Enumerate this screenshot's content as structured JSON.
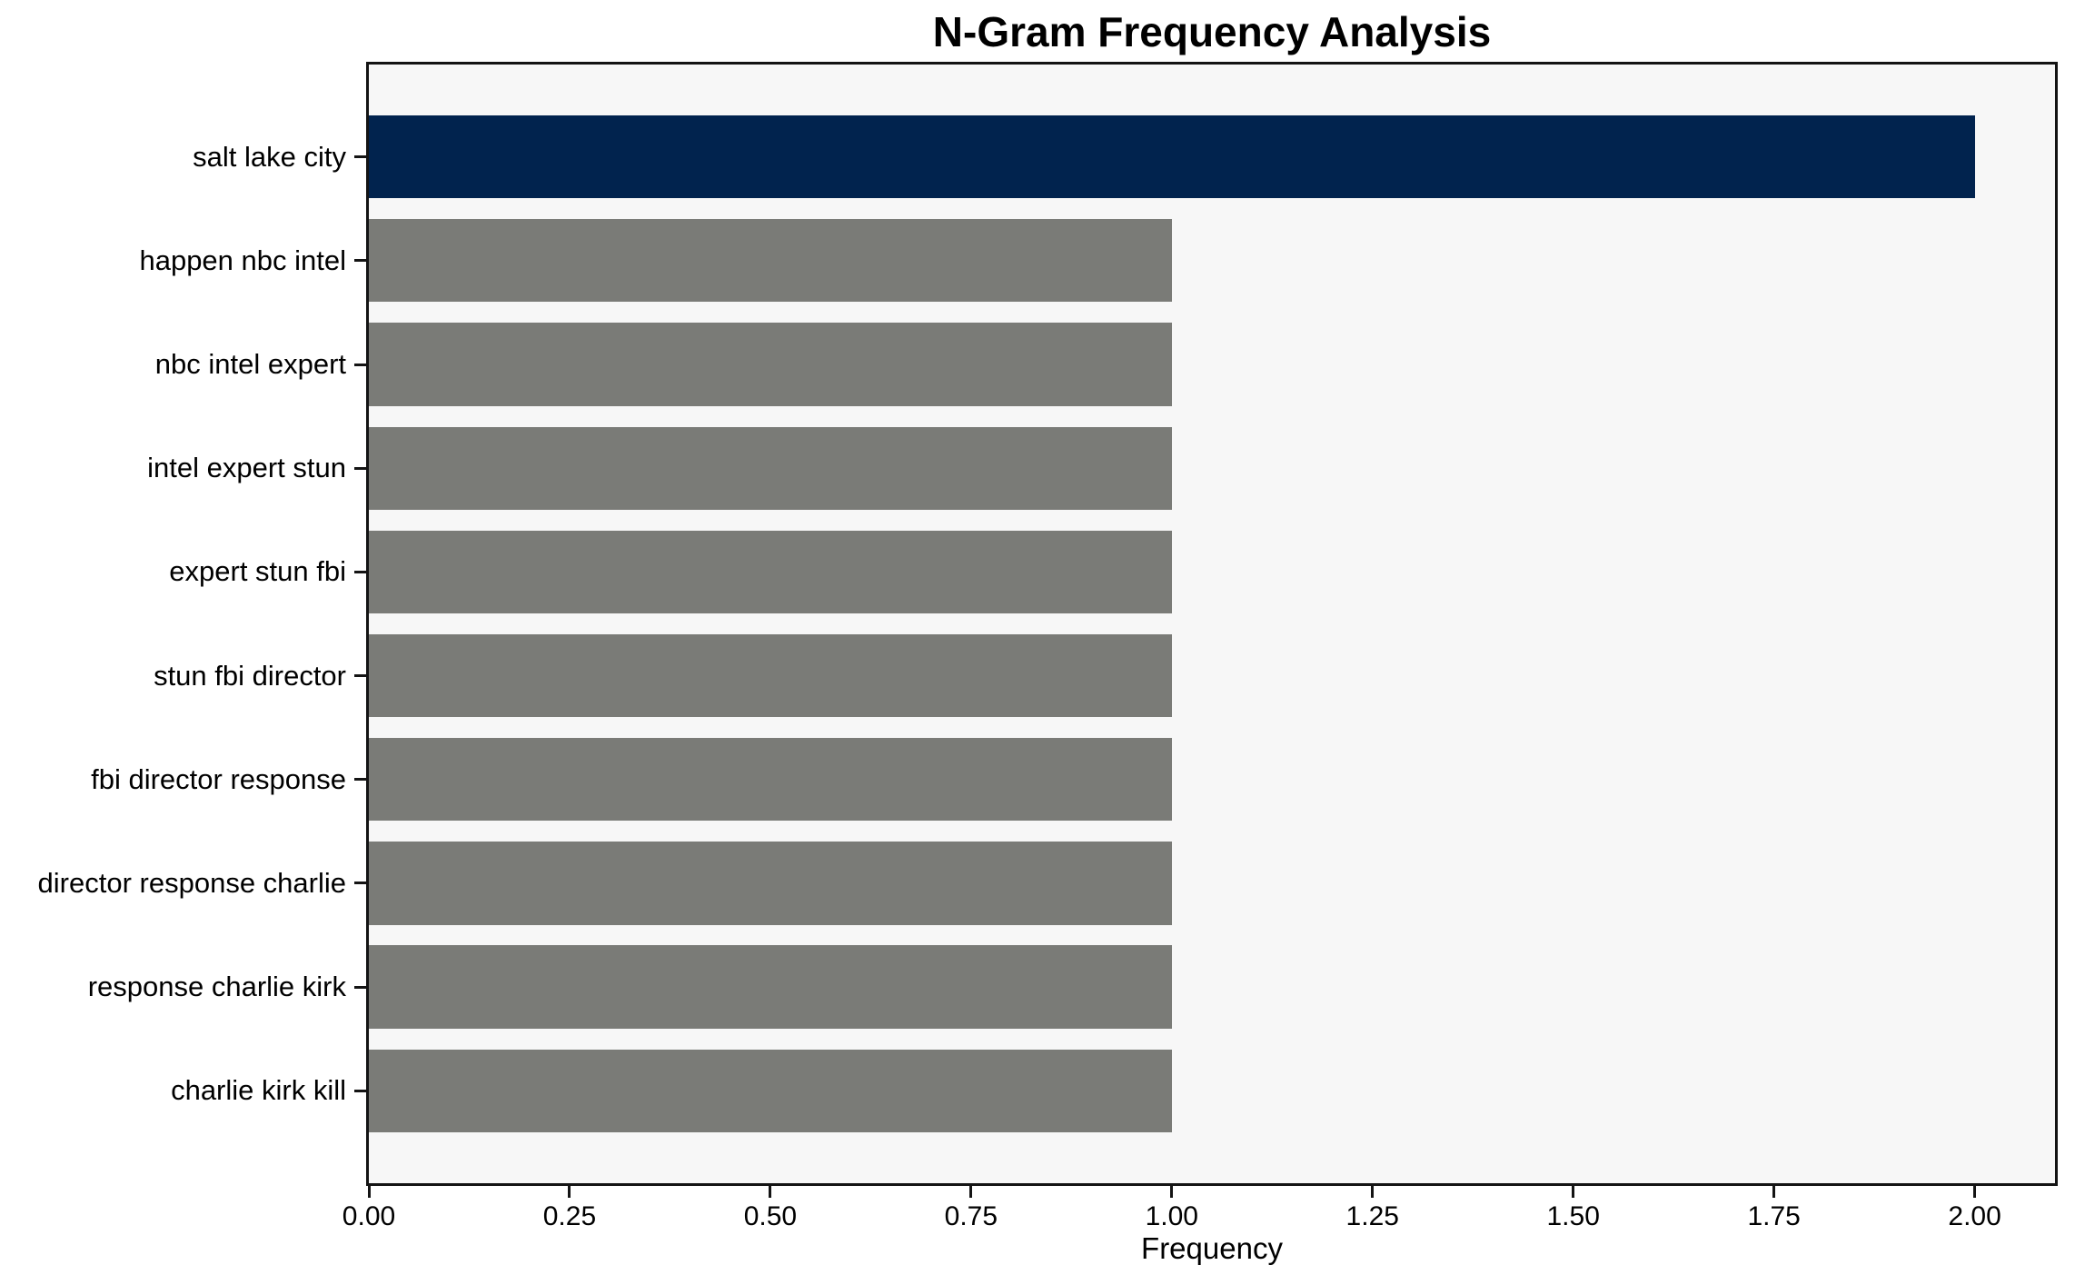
{
  "chart_data": {
    "type": "bar",
    "orientation": "horizontal",
    "title": "N-Gram Frequency Analysis",
    "xlabel": "Frequency",
    "ylabel": "",
    "categories": [
      "salt lake city",
      "happen nbc intel",
      "nbc intel expert",
      "intel expert stun",
      "expert stun fbi",
      "stun fbi director",
      "fbi director response",
      "director response charlie",
      "response charlie kirk",
      "charlie kirk kill"
    ],
    "values": [
      2,
      1,
      1,
      1,
      1,
      1,
      1,
      1,
      1,
      1
    ],
    "bar_colors": [
      "#01234e",
      "#7a7b77",
      "#7a7b77",
      "#7a7b77",
      "#7a7b77",
      "#7a7b77",
      "#7a7b77",
      "#7a7b77",
      "#7a7b77",
      "#7a7b77"
    ],
    "xlim": [
      0,
      2.1
    ],
    "xticks": [
      0.0,
      0.25,
      0.5,
      0.75,
      1.0,
      1.25,
      1.5,
      1.75,
      2.0
    ],
    "xtick_labels": [
      "0.00",
      "0.25",
      "0.50",
      "0.75",
      "1.00",
      "1.25",
      "1.50",
      "1.75",
      "2.00"
    ],
    "grid": false,
    "legend": false
  },
  "colors": {
    "highlight_bar": "#01234e",
    "default_bar": "#7a7b77",
    "plot_background": "#f7f7f7",
    "figure_background": "#ffffff",
    "spine": "#141414",
    "text": "#000000"
  }
}
